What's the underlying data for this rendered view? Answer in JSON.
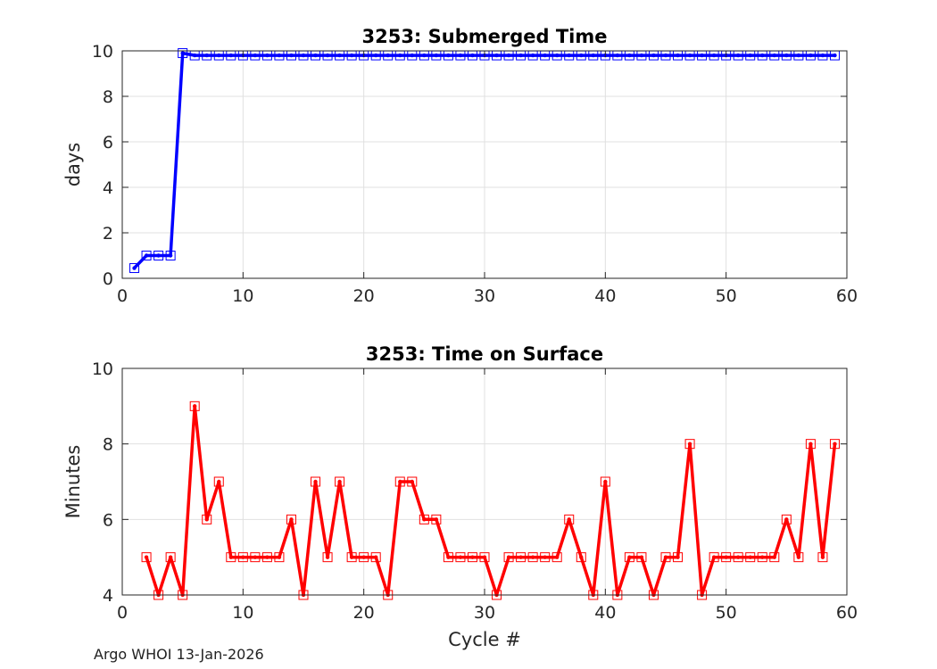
{
  "footer": {
    "text": "Argo WHOI 13-Jan-2026"
  },
  "chart_data": [
    {
      "type": "line",
      "title": "3253: Submerged Time",
      "xlabel": "",
      "ylabel": "days",
      "xlim": [
        0,
        60
      ],
      "ylim": [
        0,
        10
      ],
      "xticks": [
        0,
        10,
        20,
        30,
        40,
        50,
        60
      ],
      "yticks": [
        0,
        2,
        4,
        6,
        8,
        10
      ],
      "grid": true,
      "series": [
        {
          "color": "#0000ff",
          "marker": "square",
          "x": [
            1,
            2,
            3,
            4,
            5,
            6,
            7,
            8,
            9,
            10,
            11,
            12,
            13,
            14,
            15,
            16,
            17,
            18,
            19,
            20,
            21,
            22,
            23,
            24,
            25,
            26,
            27,
            28,
            29,
            30,
            31,
            32,
            33,
            34,
            35,
            36,
            37,
            38,
            39,
            40,
            41,
            42,
            43,
            44,
            45,
            46,
            47,
            48,
            49,
            50,
            51,
            52,
            53,
            54,
            55,
            56,
            57,
            58,
            59
          ],
          "y": [
            0.45,
            1.0,
            1.0,
            1.0,
            9.9,
            9.8,
            9.8,
            9.8,
            9.8,
            9.8,
            9.8,
            9.8,
            9.8,
            9.8,
            9.8,
            9.8,
            9.8,
            9.8,
            9.8,
            9.8,
            9.8,
            9.8,
            9.8,
            9.8,
            9.8,
            9.8,
            9.8,
            9.8,
            9.8,
            9.8,
            9.8,
            9.8,
            9.8,
            9.8,
            9.8,
            9.8,
            9.8,
            9.8,
            9.8,
            9.8,
            9.8,
            9.8,
            9.8,
            9.8,
            9.8,
            9.8,
            9.8,
            9.8,
            9.8,
            9.8,
            9.8,
            9.8,
            9.8,
            9.8,
            9.8,
            9.8,
            9.8,
            9.8,
            9.8
          ]
        }
      ]
    },
    {
      "type": "line",
      "title": "3253: Time on Surface",
      "xlabel": "Cycle #",
      "ylabel": "Minutes",
      "xlim": [
        0,
        60
      ],
      "ylim": [
        4,
        10
      ],
      "xticks": [
        0,
        10,
        20,
        30,
        40,
        50,
        60
      ],
      "yticks": [
        4,
        6,
        8,
        10
      ],
      "grid": true,
      "series": [
        {
          "color": "#ff0000",
          "marker": "square",
          "x": [
            2,
            3,
            4,
            5,
            6,
            7,
            8,
            9,
            10,
            11,
            12,
            13,
            14,
            15,
            16,
            17,
            18,
            19,
            20,
            21,
            22,
            23,
            24,
            25,
            26,
            27,
            28,
            29,
            30,
            31,
            32,
            33,
            34,
            35,
            36,
            37,
            38,
            39,
            40,
            41,
            42,
            43,
            44,
            45,
            46,
            47,
            48,
            49,
            50,
            51,
            52,
            53,
            54,
            55,
            56,
            57,
            58,
            59
          ],
          "y": [
            5,
            4,
            5,
            4,
            9,
            6,
            7,
            5,
            5,
            5,
            5,
            5,
            6,
            4,
            7,
            5,
            7,
            5,
            5,
            5,
            4,
            7,
            7,
            6,
            6,
            5,
            5,
            5,
            5,
            4,
            5,
            5,
            5,
            5,
            5,
            6,
            5,
            4,
            7,
            4,
            5,
            5,
            4,
            5,
            5,
            8,
            4,
            5,
            5,
            5,
            5,
            5,
            5,
            6,
            5,
            8,
            5,
            8
          ]
        }
      ]
    }
  ]
}
